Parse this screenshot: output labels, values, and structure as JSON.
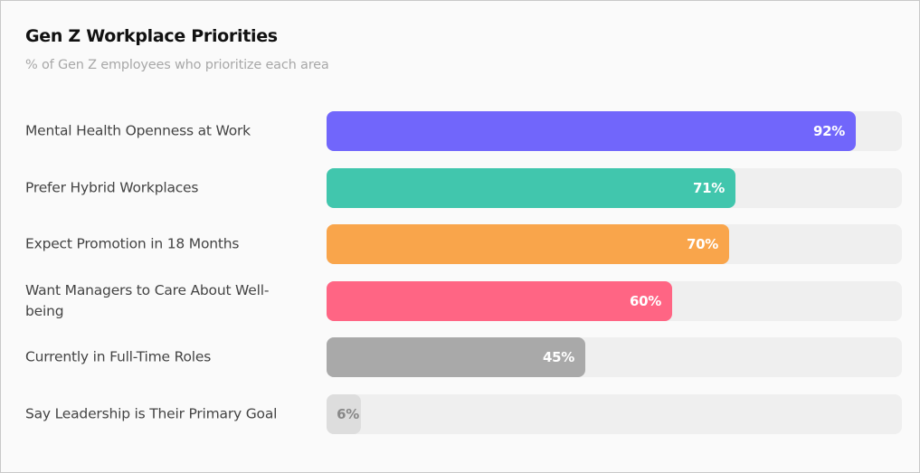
{
  "chart_data": {
    "type": "bar",
    "orientation": "horizontal",
    "title": "Gen Z Workplace Priorities",
    "subtitle": "% of Gen Z employees who prioritize each area",
    "xlabel": "",
    "ylabel": "",
    "xlim": [
      0,
      100
    ],
    "unit": "%",
    "grid": false,
    "legend": "none",
    "categories": [
      "Mental Health Openness at Work",
      "Prefer Hybrid Workplaces",
      "Expect Promotion in 18 Months",
      "Want Managers to Care About Well-being",
      "Currently in Full-Time Roles",
      "Say Leadership is Their Primary Goal"
    ],
    "values": [
      92,
      71,
      70,
      60,
      45,
      6
    ],
    "value_labels": [
      "92%",
      "71%",
      "70%",
      "60%",
      "45%",
      "6%"
    ],
    "colors": [
      "#7166fb",
      "#41c6ad",
      "#f9a54b",
      "#ff6584",
      "#a9a9a9",
      "#dddddd"
    ],
    "track_color": "#efefef"
  }
}
